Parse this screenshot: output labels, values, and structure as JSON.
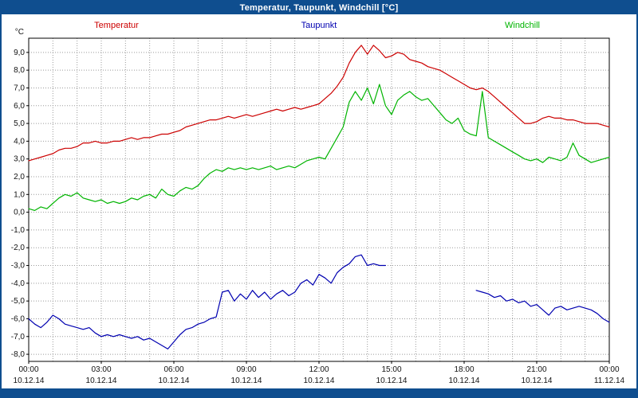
{
  "title": "Temperatur, Taupunkt, Windchill [°C]",
  "legend": {
    "temperatur": "Temperatur",
    "taupunkt": "Taupunkt",
    "windchill": "Windchill"
  },
  "colors": {
    "titlebar": "#0f4e8f",
    "temperatur": "#cc0000",
    "taupunkt": "#0000b0",
    "windchill": "#00b400",
    "grid": "#9b9b9b",
    "axis_text": "#111111",
    "plot_border": "#000000"
  },
  "chart_data": {
    "type": "line",
    "title": "Temperatur, Taupunkt, Windchill [°C]",
    "ylabel": "°C",
    "xlabel": "",
    "grid": true,
    "legend_position": "top",
    "xlim": [
      0,
      24
    ],
    "ylim": [
      -8.4,
      9.8
    ],
    "sample_interval_minutes": 15,
    "x_ticks": [
      {
        "hour": 0,
        "time": "00:00",
        "date": "10.12.14"
      },
      {
        "hour": 3,
        "time": "03:00",
        "date": "10.12.14"
      },
      {
        "hour": 6,
        "time": "06:00",
        "date": "10.12.14"
      },
      {
        "hour": 9,
        "time": "09:00",
        "date": "10.12.14"
      },
      {
        "hour": 12,
        "time": "12:00",
        "date": "10.12.14"
      },
      {
        "hour": 15,
        "time": "15:00",
        "date": "10.12.14"
      },
      {
        "hour": 18,
        "time": "18:00",
        "date": "10.12.14"
      },
      {
        "hour": 21,
        "time": "21:00",
        "date": "10.12.14"
      },
      {
        "hour": 24,
        "time": "00:00",
        "date": "11.12.14"
      }
    ],
    "y_ticks": [
      {
        "value": 9,
        "label": "9,0"
      },
      {
        "value": 8,
        "label": "8,0"
      },
      {
        "value": 7,
        "label": "7,0"
      },
      {
        "value": 6,
        "label": "6,0"
      },
      {
        "value": 5,
        "label": "5,0"
      },
      {
        "value": 4,
        "label": "4,0"
      },
      {
        "value": 3,
        "label": "3,0"
      },
      {
        "value": 2,
        "label": "2,0"
      },
      {
        "value": 1,
        "label": "1,0"
      },
      {
        "value": 0,
        "label": "0,0"
      },
      {
        "value": -1,
        "label": "-1,0"
      },
      {
        "value": -2,
        "label": "-2,0"
      },
      {
        "value": -3,
        "label": "-3,0"
      },
      {
        "value": -4,
        "label": "-4,0"
      },
      {
        "value": -5,
        "label": "-5,0"
      },
      {
        "value": -6,
        "label": "-6,0"
      },
      {
        "value": -7,
        "label": "-7,0"
      },
      {
        "value": -8,
        "label": "-8,0"
      }
    ],
    "series": [
      {
        "name": "Temperatur",
        "color": "#cc0000",
        "values": [
          2.9,
          3.0,
          3.1,
          3.2,
          3.3,
          3.5,
          3.6,
          3.6,
          3.7,
          3.9,
          3.9,
          4.0,
          3.9,
          3.9,
          4.0,
          4.0,
          4.1,
          4.2,
          4.1,
          4.2,
          4.2,
          4.3,
          4.4,
          4.4,
          4.5,
          4.6,
          4.8,
          4.9,
          5.0,
          5.1,
          5.2,
          5.2,
          5.3,
          5.4,
          5.3,
          5.4,
          5.5,
          5.4,
          5.5,
          5.6,
          5.7,
          5.8,
          5.7,
          5.8,
          5.9,
          5.8,
          5.9,
          6.0,
          6.1,
          6.4,
          6.7,
          7.1,
          7.6,
          8.4,
          9.0,
          9.4,
          8.9,
          9.4,
          9.1,
          8.7,
          8.8,
          9.0,
          8.9,
          8.6,
          8.5,
          8.4,
          8.2,
          8.1,
          8.0,
          7.8,
          7.6,
          7.4,
          7.2,
          7.0,
          6.9,
          7.0,
          6.8,
          6.5,
          6.2,
          5.9,
          5.6,
          5.3,
          5.0,
          5.0,
          5.1,
          5.3,
          5.4,
          5.3,
          5.3,
          5.2,
          5.2,
          5.1,
          5.0,
          5.0,
          5.0,
          4.9,
          4.8
        ]
      },
      {
        "name": "Taupunkt",
        "color": "#0000b0",
        "values": [
          -6.0,
          -6.3,
          -6.5,
          -6.2,
          -5.8,
          -6.0,
          -6.3,
          -6.4,
          -6.5,
          -6.6,
          -6.5,
          -6.8,
          -7.0,
          -6.9,
          -7.0,
          -6.9,
          -7.0,
          -7.1,
          -7.0,
          -7.2,
          -7.1,
          -7.3,
          -7.5,
          -7.7,
          -7.3,
          -6.9,
          -6.6,
          -6.5,
          -6.3,
          -6.2,
          -6.0,
          -5.9,
          -4.5,
          -4.4,
          -5.0,
          -4.6,
          -4.9,
          -4.4,
          -4.8,
          -4.5,
          -4.9,
          -4.6,
          -4.4,
          -4.7,
          -4.5,
          -4.0,
          -3.8,
          -4.1,
          -3.5,
          -3.7,
          -4.0,
          -3.4,
          -3.1,
          -2.9,
          -2.5,
          -2.4,
          -3.0,
          -2.9,
          -3.0,
          -3.0,
          null,
          null,
          null,
          null,
          null,
          null,
          null,
          null,
          null,
          null,
          null,
          null,
          null,
          null,
          -4.4,
          -4.5,
          -4.6,
          -4.8,
          -4.7,
          -5.0,
          -4.9,
          -5.1,
          -5.0,
          -5.3,
          -5.2,
          -5.5,
          -5.8,
          -5.4,
          -5.3,
          -5.5,
          -5.4,
          -5.3,
          -5.4,
          -5.5,
          -5.7,
          -6.0,
          -6.2
        ]
      },
      {
        "name": "Windchill",
        "color": "#00b400",
        "values": [
          0.2,
          0.1,
          0.3,
          0.2,
          0.5,
          0.8,
          1.0,
          0.9,
          1.1,
          0.8,
          0.7,
          0.6,
          0.7,
          0.5,
          0.6,
          0.5,
          0.6,
          0.8,
          0.7,
          0.9,
          1.0,
          0.8,
          1.3,
          1.0,
          0.9,
          1.2,
          1.4,
          1.3,
          1.5,
          1.9,
          2.2,
          2.4,
          2.3,
          2.5,
          2.4,
          2.5,
          2.4,
          2.5,
          2.4,
          2.5,
          2.6,
          2.4,
          2.5,
          2.6,
          2.5,
          2.7,
          2.9,
          3.0,
          3.1,
          3.0,
          3.6,
          4.2,
          4.8,
          6.2,
          6.8,
          6.3,
          7.0,
          6.1,
          7.2,
          6.0,
          5.5,
          6.3,
          6.6,
          6.8,
          6.5,
          6.3,
          6.4,
          6.0,
          5.6,
          5.2,
          5.0,
          5.3,
          4.6,
          4.4,
          4.3,
          6.8,
          4.2,
          4.0,
          3.8,
          3.6,
          3.4,
          3.2,
          3.0,
          2.9,
          3.0,
          2.8,
          3.1,
          3.0,
          2.9,
          3.1,
          3.9,
          3.2,
          3.0,
          2.8,
          2.9,
          3.0,
          3.1
        ]
      }
    ]
  }
}
